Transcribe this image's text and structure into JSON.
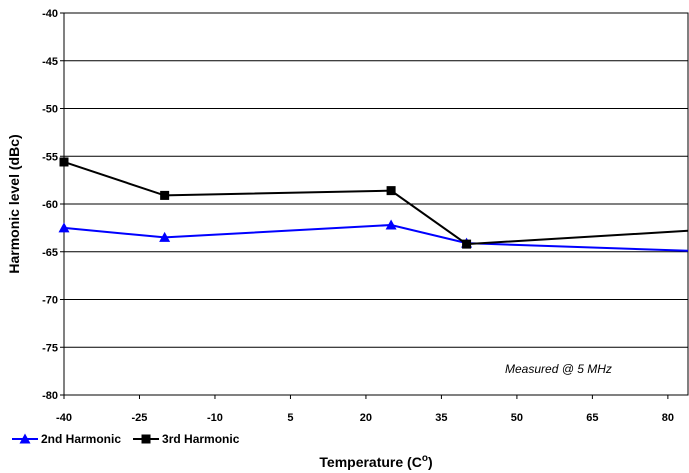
{
  "chart_data": {
    "type": "line",
    "title": "",
    "xlabel": "Temperature (C",
    "xlabel_superscript": "o",
    "xlabel_close": ")",
    "ylabel": "Harmonic level (dBc)",
    "xlim": [
      -40,
      84
    ],
    "ylim": [
      -80,
      -40
    ],
    "x_ticks": [
      -40,
      -25,
      -10,
      5,
      20,
      35,
      50,
      65,
      80
    ],
    "y_ticks": [
      -40,
      -45,
      -50,
      -55,
      -60,
      -65,
      -70,
      -75,
      -80
    ],
    "grid": "horizontal",
    "legend_position": "bottom-left",
    "annotation": "Measured @ 5  MHz",
    "series": [
      {
        "name": "2nd  Harmonic",
        "color": "#0000ff",
        "marker": "triangle",
        "x": [
          -40,
          -20,
          25,
          40,
          84
        ],
        "y": [
          -62.5,
          -63.5,
          -62.2,
          -64.1,
          -64.9
        ]
      },
      {
        "name": "3rd Harmonic",
        "color": "#000000",
        "marker": "square",
        "x": [
          -40,
          -20,
          25,
          40,
          84
        ],
        "y": [
          -55.6,
          -59.1,
          -58.6,
          -64.2,
          -62.8
        ]
      }
    ]
  }
}
